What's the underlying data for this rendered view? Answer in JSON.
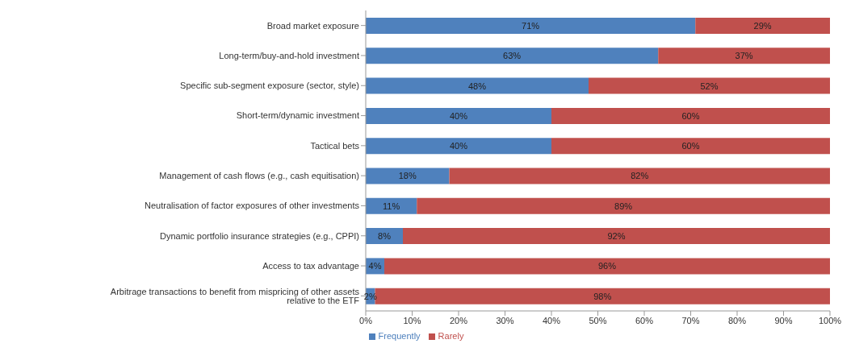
{
  "chart_data": {
    "type": "bar",
    "orientation": "horizontal",
    "stacked": true,
    "categories": [
      "Broad market exposure",
      "Long-term/buy-and-hold investment",
      "Specific sub-segment exposure (sector, style)",
      "Short-term/dynamic investment",
      "Tactical bets",
      "Management of cash flows (e.g., cash equitisation)",
      "Neutralisation of factor exposures of other investments",
      "Dynamic portfolio insurance strategies (e.g., CPPI)",
      "Access to tax advantage",
      "Arbitrage transactions to benefit from mispricing of other assets relative to the ETF"
    ],
    "series": [
      {
        "name": "Frequently",
        "color": "#4f81bd",
        "values": [
          71,
          63,
          48,
          40,
          40,
          18,
          11,
          8,
          4,
          2
        ],
        "value_labels": [
          "71%",
          "63%",
          "48%",
          "40%",
          "40%",
          "18%",
          "11%",
          "8%",
          "4%",
          "2%"
        ]
      },
      {
        "name": "Rarely",
        "color": "#c0504d",
        "values": [
          29,
          37,
          52,
          60,
          60,
          82,
          89,
          92,
          96,
          98
        ],
        "value_labels": [
          "29%",
          "37%",
          "52%",
          "60%",
          "60%",
          "82%",
          "89%",
          "92%",
          "96%",
          "98%"
        ]
      }
    ],
    "xlim": [
      0,
      100
    ],
    "xticks": [
      {
        "value": 0,
        "label": "0%"
      },
      {
        "value": 10,
        "label": "10%"
      },
      {
        "value": 20,
        "label": "20%"
      },
      {
        "value": 30,
        "label": "30%"
      },
      {
        "value": 40,
        "label": "40%"
      },
      {
        "value": 50,
        "label": "50%"
      },
      {
        "value": 60,
        "label": "60%"
      },
      {
        "value": 70,
        "label": "70%"
      },
      {
        "value": 80,
        "label": "80%"
      },
      {
        "value": 90,
        "label": "90%"
      },
      {
        "value": 100,
        "label": "100%"
      }
    ],
    "grid": false,
    "legend": "bottom"
  }
}
